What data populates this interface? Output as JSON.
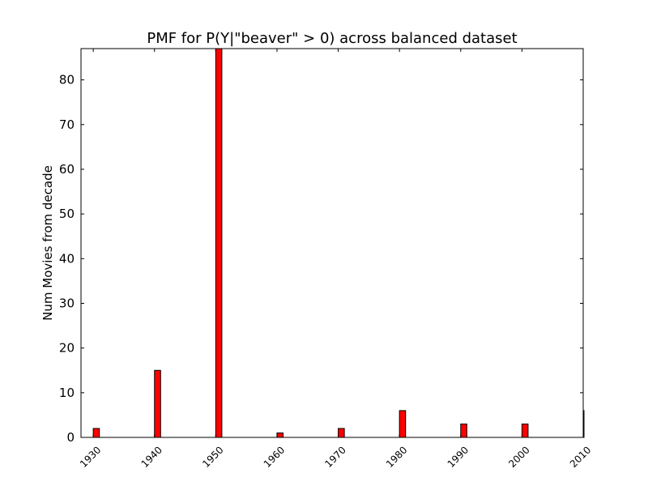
{
  "chart_data": {
    "type": "bar",
    "title": "PMF for P(Y|\"beaver\" > 0) across balanced dataset",
    "xlabel": "",
    "ylabel": "Num Movies from decade",
    "categories": [
      "1930",
      "1940",
      "1950",
      "1960",
      "1970",
      "1980",
      "1990",
      "2000",
      "2010"
    ],
    "values": [
      2,
      15,
      87,
      1,
      2,
      6,
      3,
      3,
      6
    ],
    "xlim": [
      1928,
      2010
    ],
    "ylim": [
      0,
      87
    ],
    "yticks": [
      0,
      10,
      20,
      30,
      40,
      50,
      60,
      70,
      80
    ],
    "bar_color": "#ff0000",
    "edge_color": "#000000",
    "grid": false,
    "legend": "none",
    "xtick_rotation": "45"
  }
}
